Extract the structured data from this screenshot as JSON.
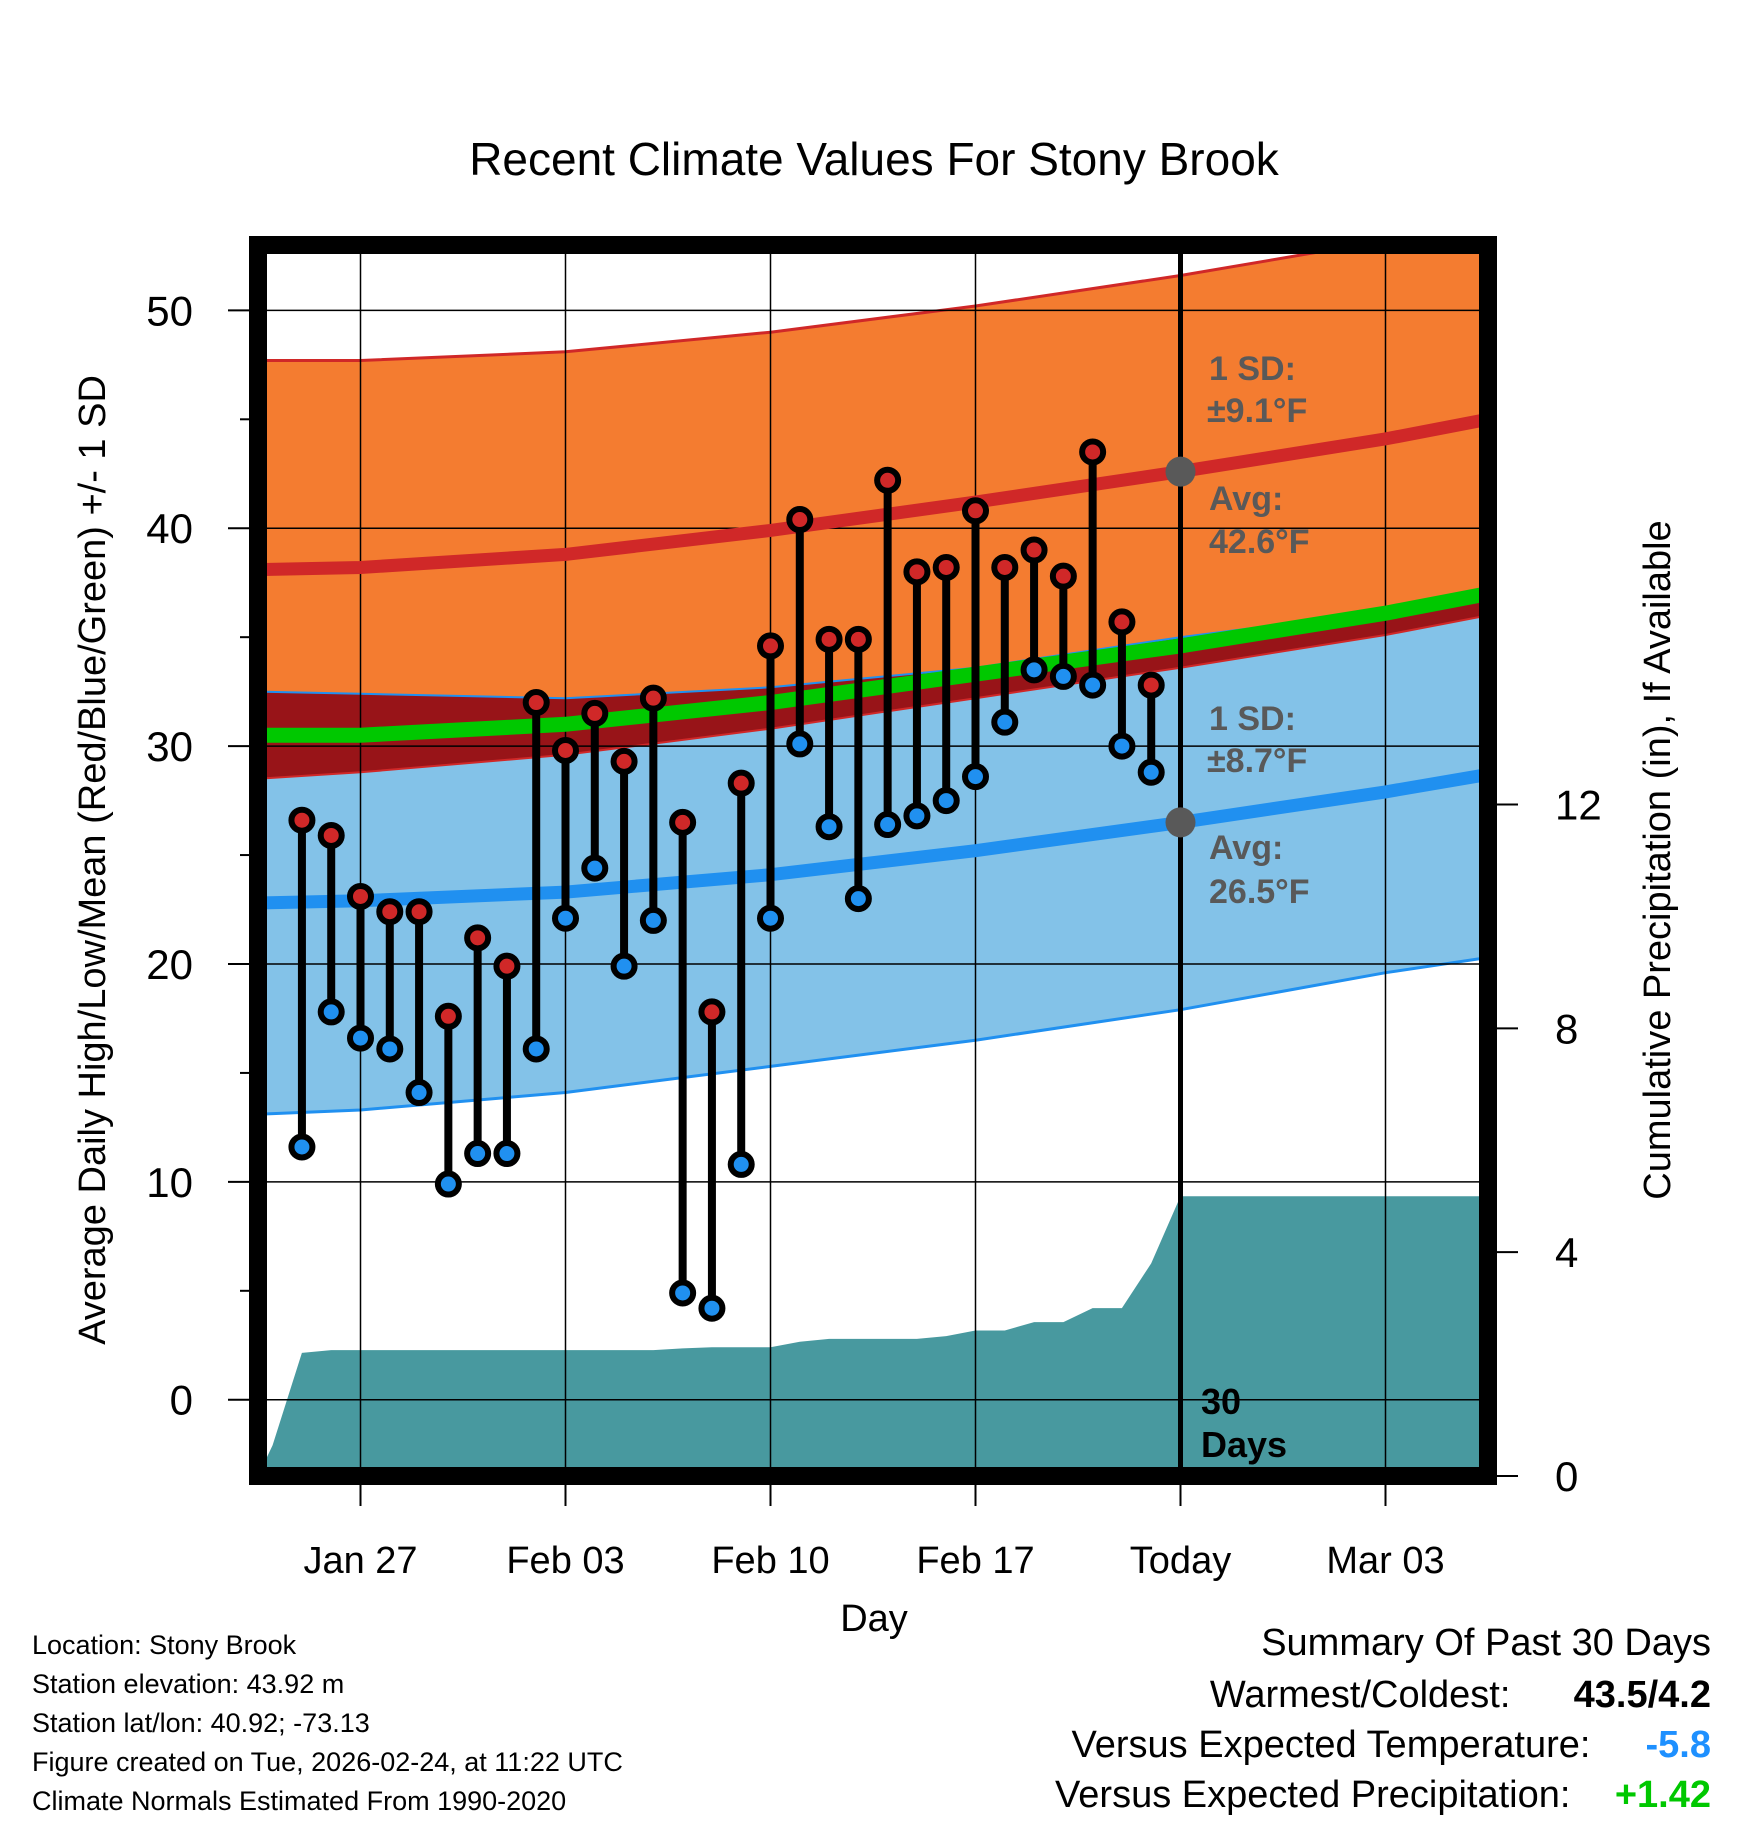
{
  "chart_data": {
    "type": "line",
    "title": "Recent Climate Values For Stony Brook",
    "xlabel": "Day",
    "ylabel": "Average Daily High/Low/Mean (Red/Blue/Green) +/- 1 SD",
    "y2label": "Cumulative Precipitation (in), If Available",
    "ylim": [
      -3.5,
      53
    ],
    "y2lim": [
      0,
      22
    ],
    "y_ticks": [
      "0",
      "10",
      "20",
      "30",
      "40",
      "50"
    ],
    "y2_ticks": [
      "0",
      "4",
      "8",
      "12"
    ],
    "x_range_days": [
      -31.5,
      10.5
    ],
    "x_ticks": [
      {
        "day": -28,
        "label": "Jan 27"
      },
      {
        "day": -21,
        "label": "Feb 03"
      },
      {
        "day": -14,
        "label": "Feb 10"
      },
      {
        "day": -7,
        "label": "Feb 17"
      },
      {
        "day": 0,
        "label": "Today"
      },
      {
        "day": 7,
        "label": "Mar 03"
      }
    ],
    "today_label": "30 Days",
    "high_normal": {
      "sd_label": "1 SD:",
      "sd_value": "±9.1°F",
      "avg_label": "Avg:",
      "avg_value": "42.6°F",
      "avg_today": 42.6,
      "x": [
        -31.5,
        -28,
        -21,
        -14,
        -7,
        0,
        7,
        10.5
      ],
      "mean": [
        38.1,
        38.2,
        38.8,
        39.9,
        41.2,
        42.6,
        44.1,
        45.0
      ],
      "upper": [
        47.7,
        47.7,
        48.1,
        49.0,
        50.2,
        51.6,
        53.2,
        54.1
      ],
      "lower": [
        28.5,
        28.8,
        29.6,
        30.8,
        32.2,
        33.6,
        35.1,
        36.0
      ]
    },
    "low_normal": {
      "sd_label": "1 SD:",
      "sd_value": "±8.7°F",
      "avg_label": "Avg:",
      "avg_value": "26.5°F",
      "avg_today": 26.5,
      "x": [
        -31.5,
        -28,
        -21,
        -14,
        -7,
        0,
        7,
        10.5
      ],
      "mean": [
        22.8,
        22.9,
        23.3,
        24.1,
        25.2,
        26.5,
        27.9,
        28.7
      ],
      "upper": [
        32.5,
        32.4,
        32.2,
        32.7,
        33.6,
        35.0,
        36.2,
        36.8
      ],
      "lower": [
        13.1,
        13.3,
        14.1,
        15.3,
        16.5,
        17.9,
        19.6,
        20.3
      ]
    },
    "mean_normal": {
      "x": [
        -31.5,
        -28,
        -21,
        -14,
        -7,
        0,
        7,
        10.5
      ],
      "values": [
        30.5,
        30.5,
        31.0,
        32.0,
        33.3,
        34.6,
        36.1,
        37.0
      ]
    },
    "observations": {
      "day": [
        -30,
        -29,
        -28,
        -27,
        -26,
        -25,
        -24,
        -23,
        -22,
        -21,
        -20,
        -19,
        -18,
        -17,
        -16,
        -15,
        -14,
        -13,
        -12,
        -11,
        -10,
        -9,
        -8,
        -7,
        -6,
        -5,
        -4,
        -3,
        -2,
        -1
      ],
      "high": [
        26.6,
        25.9,
        23.1,
        22.4,
        22.4,
        17.6,
        21.2,
        19.9,
        32.0,
        29.8,
        31.5,
        29.3,
        32.2,
        26.5,
        17.8,
        28.3,
        34.6,
        40.4,
        34.9,
        34.9,
        42.2,
        38.0,
        38.2,
        40.8,
        38.2,
        39.0,
        37.8,
        43.5,
        35.7,
        32.8
      ],
      "low": [
        11.6,
        17.8,
        16.6,
        16.1,
        14.1,
        9.9,
        11.3,
        11.3,
        16.1,
        22.1,
        24.4,
        19.9,
        22.0,
        4.9,
        4.2,
        10.8,
        22.1,
        30.1,
        26.3,
        23.0,
        26.4,
        26.8,
        27.5,
        28.6,
        31.1,
        33.5,
        33.2,
        32.8,
        30.0,
        28.8
      ]
    },
    "precipitation": {
      "day": [
        -31.5,
        -31,
        -30,
        -29,
        -28,
        -27,
        -26,
        -25,
        -24,
        -23,
        -22,
        -21,
        -20,
        -19,
        -18,
        -17,
        -16,
        -15,
        -14,
        -13,
        -12,
        -11,
        -10,
        -9,
        -8,
        -7,
        -6,
        -5,
        -4,
        -3,
        -2,
        -1,
        0,
        10.5
      ],
      "cumulative": [
        0.0,
        0.55,
        2.2,
        2.25,
        2.25,
        2.25,
        2.25,
        2.25,
        2.25,
        2.25,
        2.25,
        2.25,
        2.25,
        2.25,
        2.25,
        2.28,
        2.3,
        2.3,
        2.3,
        2.4,
        2.45,
        2.45,
        2.45,
        2.45,
        2.5,
        2.6,
        2.6,
        2.75,
        2.75,
        3.0,
        3.0,
        3.8,
        5.0,
        5.0
      ]
    }
  },
  "info": {
    "location": "Location: Stony Brook",
    "elevation": "Station elevation: 43.92 m",
    "latlon": "Station lat/lon: 40.92; -73.13",
    "created": "Figure created on Tue, 2026-02-24, at 11:22 UTC",
    "normals": "Climate Normals Estimated From 1990-2020"
  },
  "summary": {
    "title": "Summary Of Past 30 Days",
    "warmest_label": "Warmest/Coldest:",
    "warmest_value": "43.5/4.2",
    "temp_label": "Versus Expected Temperature:",
    "temp_value": "-5.8",
    "temp_color": "#1e90ff",
    "precip_label": "Versus Expected Precipitation:",
    "precip_value": "+1.42",
    "precip_color": "#00c800"
  },
  "colors": {
    "high_band": "#f47c30",
    "high_line": "#d02828",
    "low_band": "#83c2e8",
    "low_line": "#2090f0",
    "overlap": "#981418",
    "mean_line": "#00c800",
    "precip": "#48999f",
    "annotation": "#595959"
  }
}
